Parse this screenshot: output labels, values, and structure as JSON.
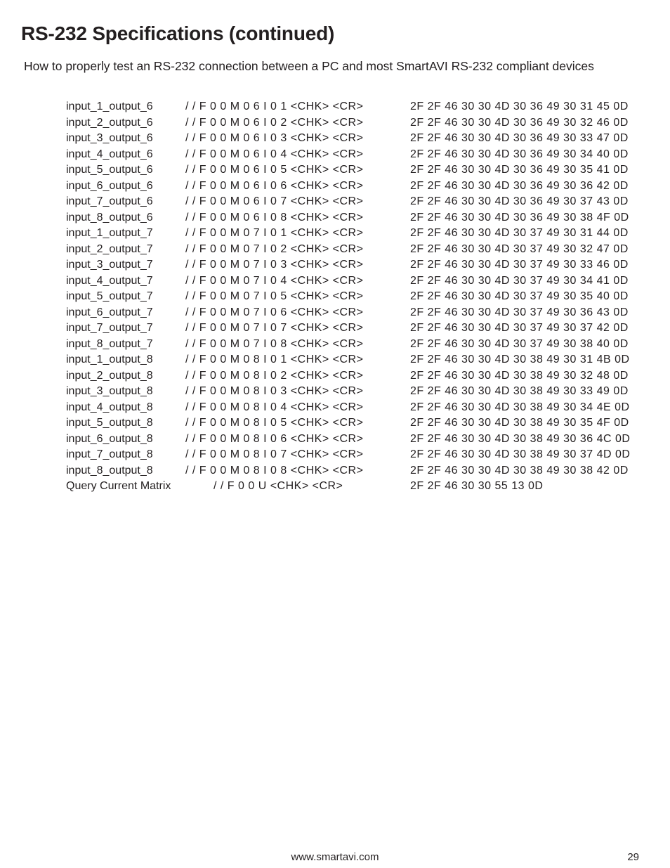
{
  "title": "RS-232 Specifications (continued)",
  "subtitle": "How to properly test an RS-232 connection between a PC and most SmartAVI RS-232 compliant devices",
  "footer_url": "www.smartavi.com",
  "page_number": "29",
  "rows": [
    {
      "label": "input_1_output_6",
      "cmd": "/ / F 0 0 M 0 6 I 0 1 <CHK> <CR>",
      "hex": "2F 2F 46 30 30 4D 30 36 49 30 31 45 0D"
    },
    {
      "label": "input_2_output_6",
      "cmd": "/ / F 0 0 M 0 6 I 0 2 <CHK> <CR>",
      "hex": "2F 2F 46 30 30 4D 30 36 49 30 32 46 0D"
    },
    {
      "label": "input_3_output_6",
      "cmd": "/ / F 0 0 M 0 6 I 0 3 <CHK> <CR>",
      "hex": "2F 2F 46 30 30 4D 30 36 49 30 33 47 0D"
    },
    {
      "label": "input_4_output_6",
      "cmd": "/ / F 0 0 M 0 6 I 0 4 <CHK> <CR>",
      "hex": "2F 2F 46 30 30 4D 30 36 49 30 34 40 0D"
    },
    {
      "label": "input_5_output_6",
      "cmd": "/ / F 0 0 M 0 6 I 0 5 <CHK> <CR>",
      "hex": "2F 2F 46 30 30 4D 30 36 49 30 35 41 0D"
    },
    {
      "label": "input_6_output_6",
      "cmd": "/ / F 0 0 M 0 6 I 0 6 <CHK> <CR>",
      "hex": "2F 2F 46 30 30 4D 30 36 49 30 36 42 0D"
    },
    {
      "label": "input_7_output_6",
      "cmd": "/ / F 0 0 M 0 6 I 0 7 <CHK> <CR>",
      "hex": "2F 2F 46 30 30 4D 30 36 49 30 37 43 0D"
    },
    {
      "label": "input_8_output_6",
      "cmd": "/ / F 0 0 M 0 6 I 0 8 <CHK> <CR>",
      "hex": "2F 2F 46 30 30 4D 30 36 49 30 38 4F 0D"
    },
    {
      "label": "input_1_output_7",
      "cmd": "/ / F 0 0 M 0 7 I 0 1 <CHK> <CR>",
      "hex": "2F 2F 46 30 30 4D 30 37 49 30 31 44 0D"
    },
    {
      "label": "input_2_output_7",
      "cmd": "/ / F 0 0 M 0 7 I 0 2 <CHK> <CR>",
      "hex": "2F 2F 46 30 30 4D 30 37 49 30 32 47 0D"
    },
    {
      "label": "input_3_output_7",
      "cmd": "/ / F 0 0 M 0 7 I 0 3 <CHK> <CR>",
      "hex": "2F 2F 46 30 30 4D 30 37 49 30 33 46 0D"
    },
    {
      "label": "input_4_output_7",
      "cmd": "/ / F 0 0 M 0 7 I 0 4 <CHK> <CR>",
      "hex": "2F 2F 46 30 30 4D 30 37 49 30 34 41 0D"
    },
    {
      "label": "input_5_output_7",
      "cmd": "/ / F 0 0 M 0 7 I 0 5 <CHK> <CR>",
      "hex": "2F 2F 46 30 30 4D 30 37 49 30 35 40 0D"
    },
    {
      "label": "input_6_output_7",
      "cmd": "/ / F 0 0 M 0 7 I 0 6 <CHK> <CR>",
      "hex": "2F 2F 46 30 30 4D 30 37 49 30 36 43 0D"
    },
    {
      "label": "input_7_output_7",
      "cmd": "/ / F 0 0 M 0 7 I 0 7 <CHK> <CR>",
      "hex": "2F 2F 46 30 30 4D 30 37 49 30 37 42 0D"
    },
    {
      "label": "input_8_output_7",
      "cmd": "/ / F 0 0 M 0 7 I 0 8 <CHK> <CR>",
      "hex": "2F 2F 46 30 30 4D 30 37 49 30 38 40 0D"
    },
    {
      "label": "input_1_output_8",
      "cmd": "/ / F 0 0 M 0 8 I 0 1 <CHK> <CR>",
      "hex": "2F 2F 46 30 30 4D 30 38 49 30 31 4B 0D"
    },
    {
      "label": "input_2_output_8",
      "cmd": "/ / F 0 0 M 0 8 I 0 2 <CHK> <CR>",
      "hex": "2F 2F 46 30 30 4D 30 38 49 30 32 48 0D"
    },
    {
      "label": "input_3_output_8",
      "cmd": "/ / F 0 0 M 0 8 I 0 3 <CHK> <CR>",
      "hex": "2F 2F 46 30 30 4D 30 38 49 30 33 49 0D"
    },
    {
      "label": "input_4_output_8",
      "cmd": "/ / F 0 0 M 0 8 I 0 4 <CHK> <CR>",
      "hex": "2F 2F 46 30 30 4D 30 38 49 30 34 4E 0D"
    },
    {
      "label": "input_5_output_8",
      "cmd": "/ / F 0 0 M 0 8 I 0 5 <CHK> <CR>",
      "hex": "2F 2F 46 30 30 4D 30 38 49 30 35 4F 0D"
    },
    {
      "label": "input_6_output_8",
      "cmd": "/ / F 0 0 M 0 8 I 0 6 <CHK> <CR>",
      "hex": "2F 2F 46 30 30 4D 30 38 49 30 36 4C 0D"
    },
    {
      "label": "input_7_output_8",
      "cmd": "/ / F 0 0 M 0 8 I 0 7 <CHK> <CR>",
      "hex": "2F 2F 46 30 30 4D 30 38 49 30 37 4D 0D"
    },
    {
      "label": "input_8_output_8",
      "cmd": "/ / F 0 0 M 0 8 I 0 8 <CHK> <CR>",
      "hex": "2F 2F 46 30 30 4D 30 38 49 30 38 42 0D"
    },
    {
      "label": "Query Current Matrix",
      "cmd": "/ / F 0 0 U <CHK> <CR>",
      "hex": "2F 2F 46 30 30 55 13 0D",
      "query": true
    }
  ]
}
